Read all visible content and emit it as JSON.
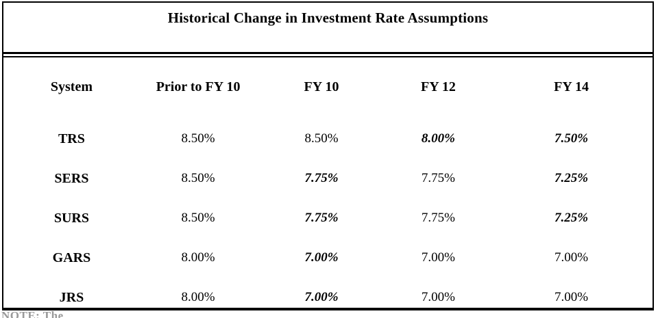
{
  "title": "Historical Change in Investment Rate Assumptions",
  "table": {
    "columns": [
      "System",
      "Prior to FY 10",
      "FY 10",
      "FY 12",
      "FY 14"
    ],
    "rows": [
      {
        "system": "TRS",
        "cells": [
          {
            "text": "8.50%",
            "bold_italic": false
          },
          {
            "text": "8.50%",
            "bold_italic": false
          },
          {
            "text": "8.00%",
            "bold_italic": true
          },
          {
            "text": "7.50%",
            "bold_italic": true
          }
        ]
      },
      {
        "system": "SERS",
        "cells": [
          {
            "text": "8.50%",
            "bold_italic": false
          },
          {
            "text": "7.75%",
            "bold_italic": true
          },
          {
            "text": "7.75%",
            "bold_italic": false
          },
          {
            "text": "7.25%",
            "bold_italic": true
          }
        ]
      },
      {
        "system": "SURS",
        "cells": [
          {
            "text": "8.50%",
            "bold_italic": false
          },
          {
            "text": "7.75%",
            "bold_italic": true
          },
          {
            "text": "7.75%",
            "bold_italic": false
          },
          {
            "text": "7.25%",
            "bold_italic": true
          }
        ]
      },
      {
        "system": "GARS",
        "cells": [
          {
            "text": "8.00%",
            "bold_italic": false
          },
          {
            "text": "7.00%",
            "bold_italic": true
          },
          {
            "text": "7.00%",
            "bold_italic": false
          },
          {
            "text": "7.00%",
            "bold_italic": false
          }
        ]
      },
      {
        "system": "JRS",
        "cells": [
          {
            "text": "8.00%",
            "bold_italic": false
          },
          {
            "text": "7.00%",
            "bold_italic": true
          },
          {
            "text": "7.00%",
            "bold_italic": false
          },
          {
            "text": "7.00%",
            "bold_italic": false
          }
        ]
      }
    ]
  },
  "footnote_clipped": "NOTE: The"
}
